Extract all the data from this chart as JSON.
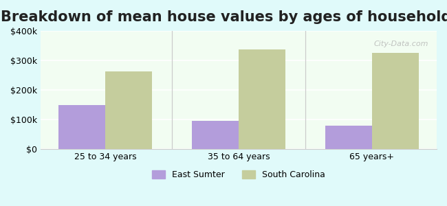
{
  "title": "Breakdown of mean house values by ages of householders",
  "categories": [
    "25 to 34 years",
    "35 to 64 years",
    "65 years+"
  ],
  "east_sumter": [
    150000,
    95000,
    80000
  ],
  "south_carolina": [
    262000,
    338000,
    325000
  ],
  "east_sumter_color": "#b39ddb",
  "south_carolina_color": "#c5cd9d",
  "ylim": [
    0,
    400000
  ],
  "yticks": [
    0,
    100000,
    200000,
    300000,
    400000
  ],
  "ytick_labels": [
    "$0",
    "$100k",
    "$200k",
    "$300k",
    "$400k"
  ],
  "background_color": "#e0fafa",
  "plot_bg_color_top": "#f0fff0",
  "plot_bg_color_bottom": "#ffffff",
  "title_fontsize": 15,
  "bar_width": 0.35,
  "legend_east_sumter": "East Sumter",
  "legend_south_carolina": "South Carolina",
  "watermark": "City-Data.com"
}
